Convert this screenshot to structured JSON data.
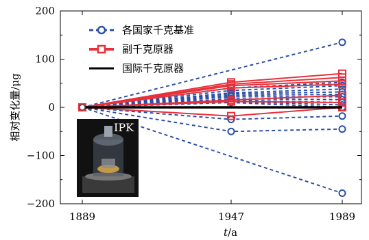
{
  "chart_data": {
    "type": "line",
    "x": [
      1889,
      1947,
      1989
    ],
    "x_tick_labels": [
      "1889",
      "1947",
      "1989"
    ],
    "xlabel_italic": "t",
    "xlabel_unit": "/a",
    "ylabel": "相对变化量/μg",
    "ylim": [
      -200,
      200
    ],
    "y_ticks": [
      200,
      100,
      0,
      -100,
      -200
    ],
    "y_tick_labels": [
      "200",
      "100",
      "0",
      "−100",
      "−200"
    ],
    "grid": false,
    "legend_position": "top-left",
    "legend": [
      {
        "label": "各国家千克基准",
        "color": "#2c4fa8",
        "style": "dashed",
        "marker": "circle"
      },
      {
        "label": "副千克原器",
        "color": "#e8303a",
        "style": "solid",
        "marker": "square"
      },
      {
        "label": "国际千克原器",
        "color": "#000000",
        "style": "solid",
        "marker": "none"
      }
    ],
    "series_groups": [
      {
        "group": "各国家千克基准",
        "color": "#2c4fa8",
        "style": "dashed",
        "marker": "circle",
        "series": [
          {
            "values": [
              0,
              null,
              135
            ]
          },
          {
            "values": [
              0,
              40,
              52
            ]
          },
          {
            "values": [
              0,
              35,
              45
            ]
          },
          {
            "values": [
              0,
              30,
              38
            ]
          },
          {
            "values": [
              0,
              28,
              32
            ]
          },
          {
            "values": [
              0,
              25,
              27
            ]
          },
          {
            "values": [
              0,
              22,
              22
            ]
          },
          {
            "values": [
              0,
              18,
              16
            ]
          },
          {
            "values": [
              0,
              15,
              10
            ]
          },
          {
            "values": [
              0,
              12,
              5
            ]
          },
          {
            "values": [
              0,
              10,
              0
            ]
          },
          {
            "values": [
              0,
              -25,
              -18
            ]
          },
          {
            "values": [
              0,
              -50,
              -45
            ]
          },
          {
            "values": [
              0,
              null,
              -178
            ]
          }
        ]
      },
      {
        "group": "副千克原器",
        "color": "#e8303a",
        "style": "solid",
        "marker": "square",
        "series": [
          {
            "values": [
              0,
              52,
              70
            ]
          },
          {
            "values": [
              0,
              48,
              62
            ]
          },
          {
            "values": [
              0,
              45,
              55
            ]
          },
          {
            "values": [
              0,
              40,
              48
            ]
          },
          {
            "values": [
              0,
              15,
              25
            ]
          },
          {
            "values": [
              0,
              12,
              10
            ]
          },
          {
            "values": [
              0,
              -18,
              0
            ]
          }
        ]
      },
      {
        "group": "国际千克原器",
        "color": "#000000",
        "style": "solid",
        "marker": "none",
        "series": [
          {
            "values": [
              0,
              0,
              0
            ]
          }
        ]
      }
    ],
    "inset_label": "IPK"
  }
}
